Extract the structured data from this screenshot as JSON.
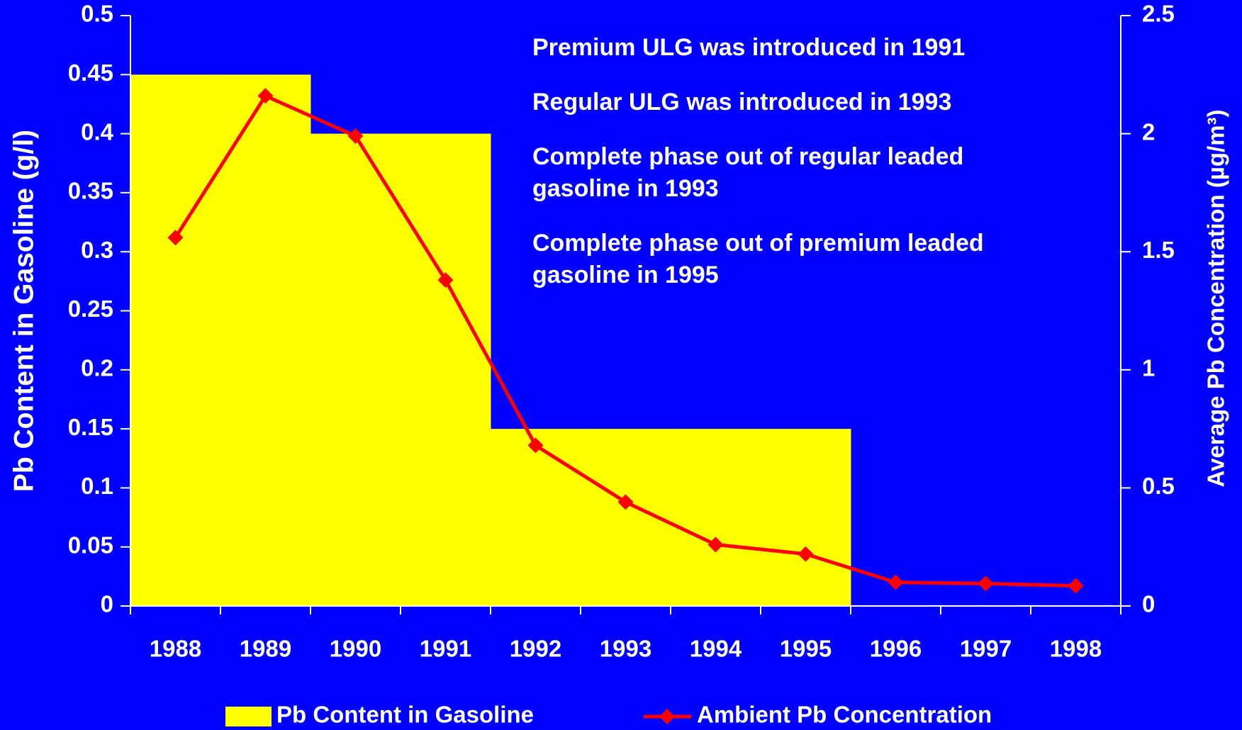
{
  "chart_data": {
    "type": "bar",
    "categories": [
      "1988",
      "1989",
      "1990",
      "1991",
      "1992",
      "1993",
      "1994",
      "1995",
      "1996",
      "1997",
      "1998"
    ],
    "series": [
      {
        "name": "Pb Content in Gasoline",
        "type": "bar",
        "color": "#ffff00",
        "axis": "y",
        "values": [
          0.45,
          0.45,
          0.4,
          0.4,
          0.15,
          0.15,
          0.15,
          0.15,
          0,
          0,
          0
        ]
      },
      {
        "name": "Ambient Pb Concentration",
        "type": "line",
        "color": "#ff0000",
        "axis": "y2",
        "values": [
          1.56,
          2.16,
          1.99,
          1.38,
          0.68,
          0.44,
          0.26,
          0.22,
          0.1,
          0.095,
          0.085
        ]
      }
    ],
    "y_label": "Pb Content in Gasoline (g/l)",
    "y2_label": "Average Pb Concentration (µg/m³)",
    "ylim": [
      0,
      0.5
    ],
    "yticks": [
      0,
      0.05,
      0.1,
      0.15,
      0.2,
      0.25,
      0.3,
      0.35,
      0.4,
      0.45,
      0.5
    ],
    "y2lim": [
      0,
      2.5
    ],
    "y2ticks": [
      0,
      0.5,
      1,
      1.5,
      2,
      2.5
    ],
    "annotations": [
      [
        "Premium ULG was introduced in 1991"
      ],
      [
        "Regular ULG was introduced in 1993"
      ],
      [
        "Complete phase out of regular leaded",
        "gasoline in 1993"
      ],
      [
        "Complete phase out of premium leaded",
        "gasoline in 1995"
      ]
    ],
    "legend": "bottom"
  }
}
